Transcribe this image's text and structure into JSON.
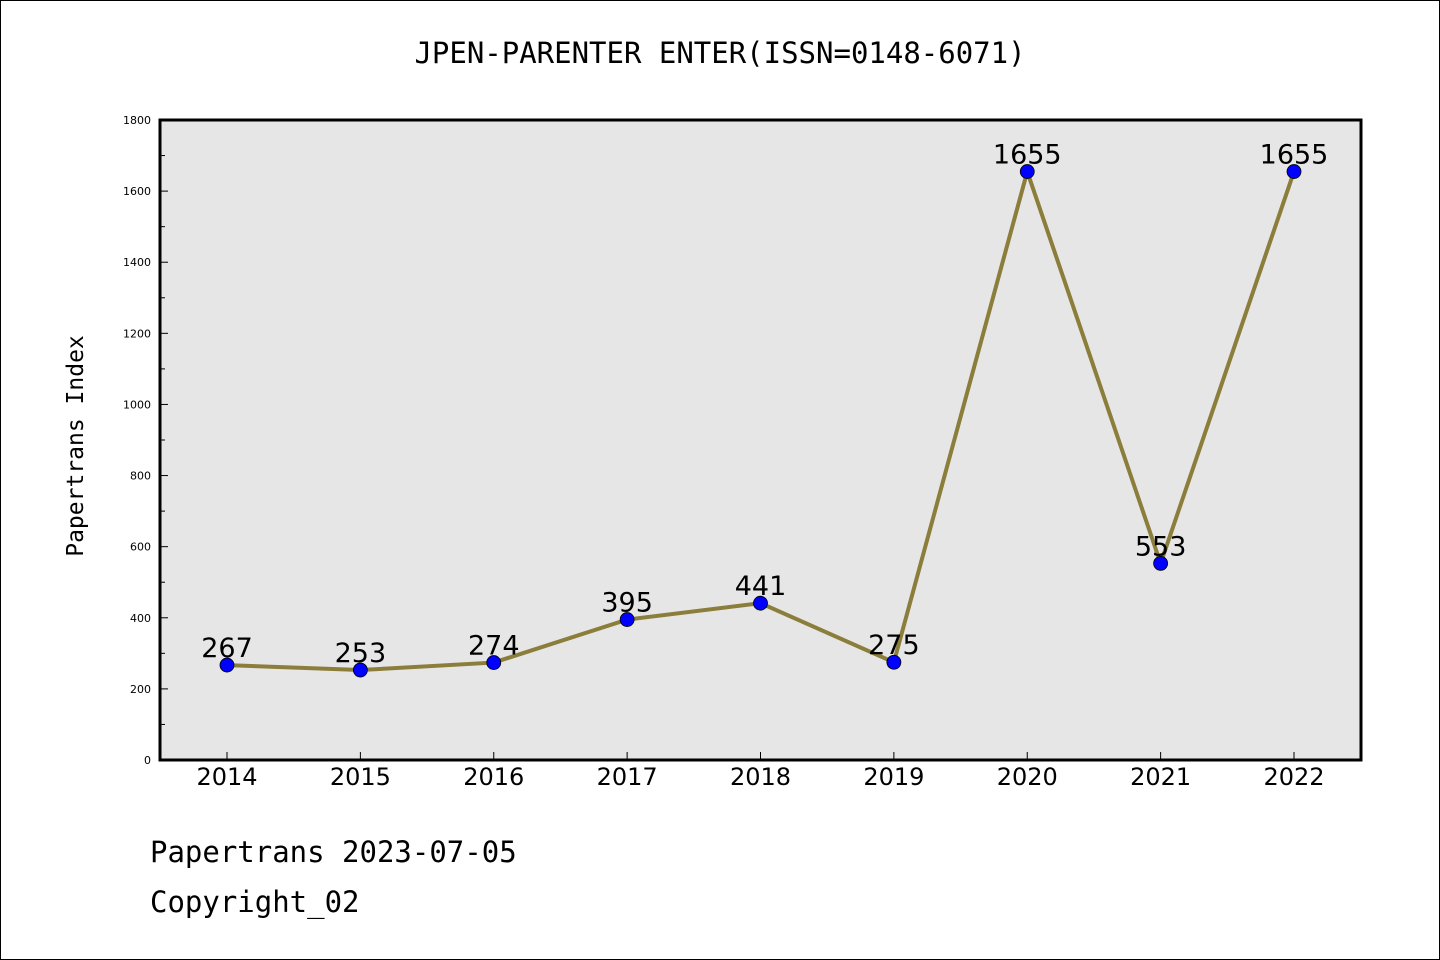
{
  "page": {
    "footer_line1": "Papertrans 2023-07-05",
    "footer_line2": "Copyright_02"
  },
  "chart_data": {
    "type": "line",
    "title": "JPEN-PARENTER ENTER(ISSN=0148-6071)",
    "xlabel": "",
    "ylabel": "Papertrans Index",
    "categories": [
      "2014",
      "2015",
      "2016",
      "2017",
      "2018",
      "2019",
      "2020",
      "2021",
      "2022"
    ],
    "values": [
      267,
      253,
      274,
      395,
      441,
      275,
      1655,
      553,
      1655
    ],
    "ylim": [
      0,
      1800
    ],
    "yticks": [
      0,
      200,
      400,
      600,
      800,
      1000,
      1200,
      1400,
      1600,
      1800
    ],
    "grid": false,
    "colors": {
      "line": "#8b7d3a",
      "marker": "#0000ff",
      "plot_background": "#e6e6e6"
    }
  }
}
